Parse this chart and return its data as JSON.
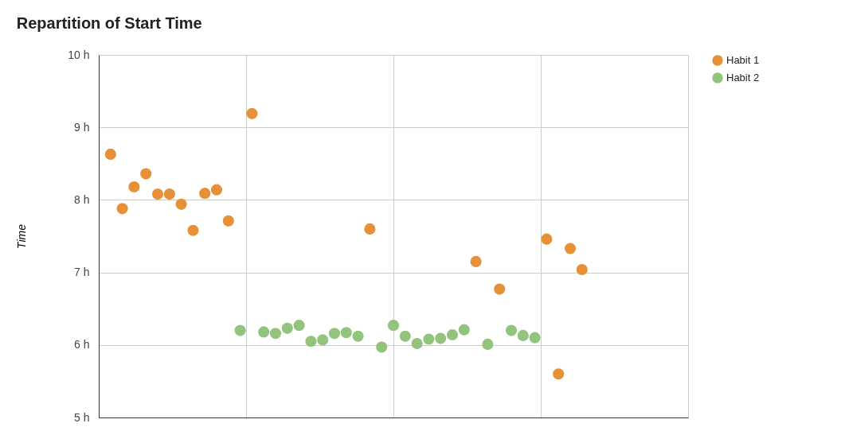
{
  "chart_data": {
    "type": "scatter",
    "title": "Repartition of Start Time",
    "ylabel": "Time",
    "categories": [
      null,
      null,
      null,
      null,
      null,
      null,
      null,
      null,
      null,
      null,
      null,
      null,
      null,
      null,
      null,
      null,
      null,
      null,
      null,
      null,
      null,
      null,
      null,
      null,
      null,
      null,
      null,
      null,
      null,
      null,
      null,
      null,
      null,
      null,
      null,
      null,
      null,
      null,
      null,
      null,
      null,
      null,
      null,
      null,
      null,
      null,
      null,
      null,
      null
    ],
    "ylim": [
      5,
      10
    ],
    "yticks": [
      {
        "value": 5,
        "label": "5 h"
      },
      {
        "value": 6,
        "label": "6 h"
      },
      {
        "value": 7,
        "label": "7 h"
      },
      {
        "value": 8,
        "label": "8 h"
      },
      {
        "value": 9,
        "label": "9 h"
      },
      {
        "value": 10,
        "label": "10 h"
      }
    ],
    "tick_labels": "y",
    "grid": true,
    "legend": "top right",
    "marker": "circle",
    "series": [
      {
        "name": "Habit 1",
        "color": "#e69138",
        "values": [
          8.63,
          7.88,
          8.18,
          8.36,
          8.08,
          8.08,
          7.94,
          7.58,
          8.09,
          8.14,
          7.71,
          null,
          9.19,
          null,
          null,
          null,
          null,
          null,
          null,
          null,
          null,
          null,
          7.6,
          null,
          null,
          null,
          null,
          null,
          null,
          null,
          null,
          7.15,
          null,
          6.77,
          null,
          null,
          null,
          7.46,
          5.6,
          7.33,
          7.04,
          null,
          null,
          null,
          null,
          null,
          null,
          null,
          null
        ]
      },
      {
        "name": "Habit 2",
        "color": "#93c47d",
        "values": [
          null,
          null,
          null,
          null,
          null,
          null,
          null,
          null,
          null,
          null,
          null,
          6.2,
          null,
          6.18,
          6.16,
          6.23,
          6.27,
          6.05,
          6.07,
          6.16,
          6.17,
          6.12,
          null,
          5.97,
          6.27,
          6.12,
          6.02,
          6.08,
          6.09,
          6.14,
          6.21,
          null,
          6.01,
          null,
          6.2,
          6.13,
          6.1,
          null,
          null,
          null,
          null,
          null,
          null,
          null,
          null,
          null,
          null,
          null,
          null
        ]
      }
    ]
  }
}
